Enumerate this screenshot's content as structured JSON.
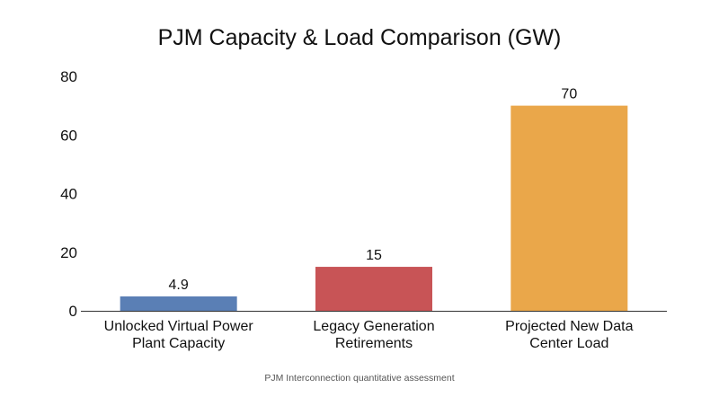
{
  "chart_data": {
    "type": "bar",
    "title": "PJM Capacity & Load Comparison (GW)",
    "categories": [
      [
        "Unlocked Virtual Power",
        "Plant Capacity"
      ],
      [
        "Legacy Generation",
        "Retirements"
      ],
      [
        "Projected New Data",
        "Center Load"
      ]
    ],
    "values": [
      4.9,
      15,
      70
    ],
    "value_labels": [
      "4.9",
      "15",
      "70"
    ],
    "colors": [
      "#5a7fb5",
      "#c85456",
      "#eaa74a"
    ],
    "ylim": [
      0,
      80
    ],
    "yticks": [
      0,
      20,
      40,
      60,
      80
    ],
    "xlabel": "",
    "ylabel": "",
    "grid": false,
    "legend": "none",
    "source": "PJM Interconnection quantitative assessment"
  }
}
